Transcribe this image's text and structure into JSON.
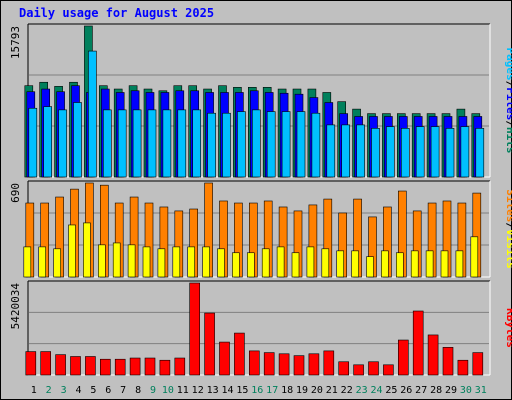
{
  "title": "Daily usage for August 2025",
  "colors": {
    "background": "#c0c0c0",
    "title": "#0000ff",
    "hits": "#00805c",
    "files": "#0000ff",
    "pages": "#00c0ff",
    "visits": "#ff8000",
    "sites": "#ffff00",
    "kbytes": "#ff0000",
    "weekend_label": "#00805c",
    "weekday_label": "#000000"
  },
  "legend": {
    "top": [
      "Pages",
      "/",
      "Files",
      "/",
      "Hits"
    ],
    "middle": [
      "Sites",
      "/",
      "Visits"
    ],
    "bottom": [
      "KBytes"
    ]
  },
  "chart_data": [
    {
      "type": "bar",
      "name": "hits-files-pages",
      "ymax_label": "15793",
      "ymax": 15793,
      "x": [
        1,
        2,
        3,
        4,
        5,
        6,
        7,
        8,
        9,
        10,
        11,
        12,
        13,
        14,
        15,
        16,
        17,
        18,
        19,
        20,
        21,
        22,
        23,
        24,
        25,
        26,
        27,
        28,
        29,
        30,
        31
      ],
      "weekend_days": [
        2,
        3,
        9,
        10,
        16,
        17,
        23,
        24,
        30,
        31
      ],
      "series": [
        {
          "name": "Hits",
          "values": [
            9550,
            9910,
            9480,
            9910,
            15793,
            9550,
            9200,
            9550,
            9200,
            9020,
            9550,
            9550,
            9200,
            9550,
            9380,
            9380,
            9380,
            9200,
            9200,
            9200,
            8840,
            7880,
            7100,
            6630,
            6630,
            6630,
            6630,
            6630,
            6630,
            7100,
            6630
          ]
        },
        {
          "name": "Files",
          "values": [
            8920,
            9200,
            8920,
            9550,
            8840,
            9200,
            8840,
            9020,
            8840,
            8840,
            9020,
            9020,
            8840,
            8840,
            8840,
            9020,
            8840,
            8760,
            8660,
            8310,
            7790,
            6630,
            6330,
            6330,
            6330,
            6330,
            6330,
            6330,
            6330,
            6330,
            6330
          ]
        },
        {
          "name": "Pages",
          "values": [
            7190,
            7360,
            7020,
            7790,
            13170,
            7020,
            7020,
            7020,
            7020,
            7020,
            7020,
            7020,
            6670,
            6670,
            6840,
            7020,
            6840,
            6840,
            6840,
            6670,
            5450,
            5450,
            5450,
            5090,
            5270,
            5090,
            5270,
            5270,
            5090,
            5270,
            5090
          ]
        }
      ]
    },
    {
      "type": "bar",
      "name": "visits-sites",
      "ymax_label": "690",
      "ymax": 690,
      "x": [
        1,
        2,
        3,
        4,
        5,
        6,
        7,
        8,
        9,
        10,
        11,
        12,
        13,
        14,
        15,
        16,
        17,
        18,
        19,
        20,
        21,
        22,
        23,
        24,
        25,
        26,
        27,
        28,
        29,
        30,
        31
      ],
      "weekend_days": [
        2,
        3,
        9,
        10,
        16,
        17,
        23,
        24,
        30,
        31
      ],
      "series": [
        {
          "name": "Visits",
          "values": [
            543,
            543,
            587,
            645,
            690,
            674,
            543,
            587,
            543,
            514,
            485,
            499,
            690,
            558,
            543,
            543,
            558,
            514,
            485,
            529,
            572,
            470,
            572,
            441,
            514,
            631,
            485,
            543,
            558,
            543,
            616
          ]
        },
        {
          "name": "Sites",
          "values": [
            221,
            221,
            207,
            382,
            397,
            236,
            250,
            236,
            221,
            207,
            221,
            221,
            221,
            207,
            178,
            178,
            207,
            221,
            178,
            221,
            207,
            192,
            192,
            149,
            192,
            178,
            192,
            192,
            192,
            192,
            295
          ]
        }
      ]
    },
    {
      "type": "bar",
      "name": "kbytes",
      "ymax_label": "5420034",
      "ymax": 5420034,
      "x": [
        1,
        2,
        3,
        4,
        5,
        6,
        7,
        8,
        9,
        10,
        11,
        12,
        13,
        14,
        15,
        16,
        17,
        18,
        19,
        20,
        21,
        22,
        23,
        24,
        25,
        26,
        27,
        28,
        29,
        30,
        31
      ],
      "weekend_days": [
        2,
        3,
        9,
        10,
        16,
        17,
        23,
        24,
        30,
        31
      ],
      "series": [
        {
          "name": "KBytes",
          "values": [
            1380000,
            1380000,
            1200000,
            1090000,
            1090000,
            930000,
            930000,
            1000000,
            1000000,
            870000,
            1000000,
            5420000,
            3650000,
            1940000,
            2470000,
            1420000,
            1320000,
            1250000,
            1140000,
            1250000,
            1420000,
            780000,
            600000,
            780000,
            600000,
            2060000,
            3770000,
            2360000,
            1630000,
            870000,
            1320000
          ]
        }
      ]
    }
  ]
}
